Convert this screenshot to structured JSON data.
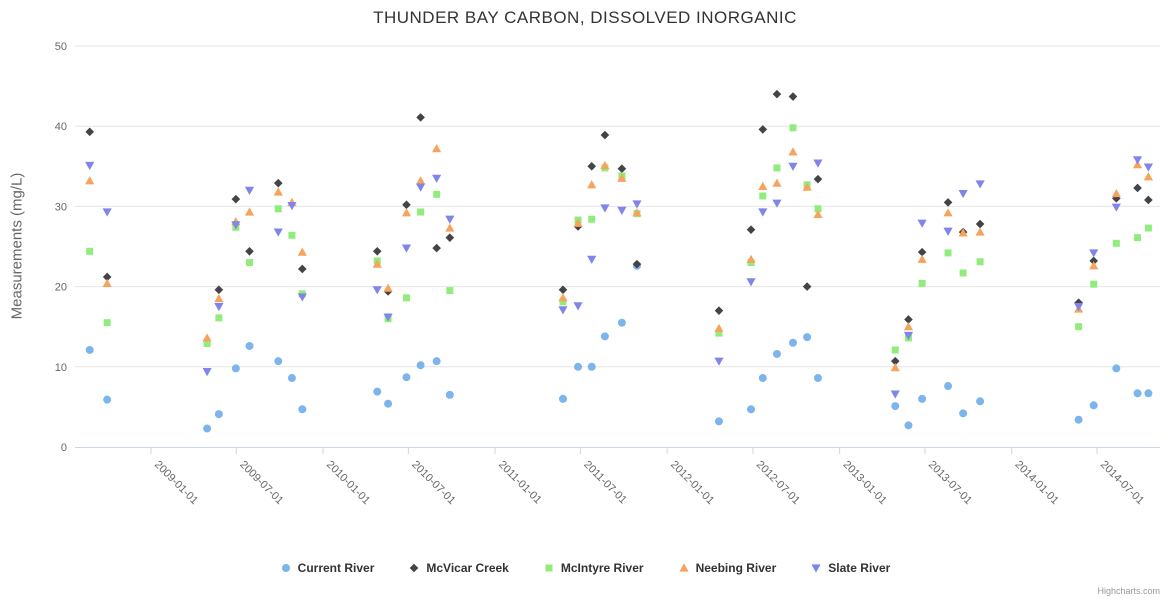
{
  "chart": {
    "title": "THUNDER BAY CARBON, DISSOLVED INORGANIC",
    "credits": "Highcharts.com"
  },
  "chart_data": {
    "type": "scatter",
    "title": "THUNDER BAY CARBON, DISSOLVED INORGANIC",
    "xlabel": "",
    "ylabel": "Measurements (mg/L)",
    "ylim": [
      0,
      50
    ],
    "y_ticks": [
      0,
      10,
      20,
      30,
      40,
      50
    ],
    "x_tick_labels": [
      "2009-01-01",
      "2009-07-01",
      "2010-01-01",
      "2010-07-01",
      "2011-01-01",
      "2011-07-01",
      "2012-01-01",
      "2012-07-01",
      "2013-01-01",
      "2013-07-01",
      "2014-01-01",
      "2014-07-01"
    ],
    "grid": true,
    "legend_position": "bottom",
    "series": [
      {
        "name": "Current River",
        "color": "#7cb5ec",
        "marker": "circle",
        "points": [
          [
            "2008-08-24",
            12.1
          ],
          [
            "2008-09-30",
            5.9
          ],
          [
            "2009-04-30",
            2.3
          ],
          [
            "2009-05-25",
            4.1
          ],
          [
            "2009-06-30",
            9.8
          ],
          [
            "2009-07-29",
            12.6
          ],
          [
            "2009-09-28",
            10.7
          ],
          [
            "2009-10-27",
            8.6
          ],
          [
            "2009-11-18",
            4.7
          ],
          [
            "2010-04-26",
            6.9
          ],
          [
            "2010-05-19",
            5.4
          ],
          [
            "2010-06-27",
            8.7
          ],
          [
            "2010-07-27",
            10.2
          ],
          [
            "2010-08-30",
            10.7
          ],
          [
            "2010-09-27",
            6.5
          ],
          [
            "2011-05-25",
            6.0
          ],
          [
            "2011-06-26",
            10.0
          ],
          [
            "2011-07-25",
            10.0
          ],
          [
            "2011-08-22",
            13.8
          ],
          [
            "2011-09-27",
            15.5
          ],
          [
            "2011-10-29",
            22.6
          ],
          [
            "2012-04-20",
            3.2
          ],
          [
            "2012-06-27",
            4.7
          ],
          [
            "2012-07-22",
            8.6
          ],
          [
            "2012-08-21",
            11.6
          ],
          [
            "2012-09-24",
            13.0
          ],
          [
            "2012-10-24",
            13.7
          ],
          [
            "2012-11-16",
            8.6
          ],
          [
            "2013-04-29",
            5.1
          ],
          [
            "2013-05-27",
            2.7
          ],
          [
            "2013-06-25",
            6.0
          ],
          [
            "2013-08-19",
            7.6
          ],
          [
            "2013-09-20",
            4.2
          ],
          [
            "2013-10-26",
            5.7
          ],
          [
            "2014-05-23",
            3.4
          ],
          [
            "2014-06-24",
            5.2
          ],
          [
            "2014-08-11",
            9.8
          ],
          [
            "2014-09-25",
            6.7
          ],
          [
            "2014-10-18",
            6.7
          ]
        ]
      },
      {
        "name": "McVicar Creek",
        "color": "#434348",
        "marker": "diamond",
        "points": [
          [
            "2008-08-24",
            39.3
          ],
          [
            "2008-09-30",
            21.2
          ],
          [
            "2009-05-25",
            19.6
          ],
          [
            "2009-06-30",
            30.9
          ],
          [
            "2009-07-29",
            24.4
          ],
          [
            "2009-09-28",
            32.9
          ],
          [
            "2009-11-18",
            22.2
          ],
          [
            "2010-04-26",
            24.4
          ],
          [
            "2010-05-19",
            19.4
          ],
          [
            "2010-06-27",
            30.2
          ],
          [
            "2010-07-27",
            41.1
          ],
          [
            "2010-08-30",
            24.8
          ],
          [
            "2010-09-27",
            26.1
          ],
          [
            "2011-05-25",
            19.6
          ],
          [
            "2011-06-26",
            27.5
          ],
          [
            "2011-07-25",
            35.0
          ],
          [
            "2011-08-22",
            38.9
          ],
          [
            "2011-09-27",
            34.7
          ],
          [
            "2011-10-29",
            22.8
          ],
          [
            "2012-04-20",
            17.0
          ],
          [
            "2012-06-27",
            27.1
          ],
          [
            "2012-07-22",
            39.6
          ],
          [
            "2012-08-21",
            44.0
          ],
          [
            "2012-09-24",
            43.7
          ],
          [
            "2012-10-24",
            20.0
          ],
          [
            "2012-11-16",
            33.4
          ],
          [
            "2013-04-29",
            10.7
          ],
          [
            "2013-05-27",
            15.9
          ],
          [
            "2013-06-25",
            24.3
          ],
          [
            "2013-08-19",
            30.5
          ],
          [
            "2013-09-20",
            26.8
          ],
          [
            "2013-10-26",
            27.8
          ],
          [
            "2014-05-23",
            18.0
          ],
          [
            "2014-06-24",
            23.2
          ],
          [
            "2014-08-11",
            31.0
          ],
          [
            "2014-09-25",
            32.3
          ],
          [
            "2014-10-18",
            30.8
          ]
        ]
      },
      {
        "name": "McIntyre River",
        "color": "#90ed7d",
        "marker": "square",
        "points": [
          [
            "2008-08-24",
            24.4
          ],
          [
            "2008-09-30",
            15.5
          ],
          [
            "2009-04-30",
            12.9
          ],
          [
            "2009-05-25",
            16.1
          ],
          [
            "2009-06-30",
            27.4
          ],
          [
            "2009-07-29",
            23.0
          ],
          [
            "2009-09-28",
            29.7
          ],
          [
            "2009-10-27",
            26.4
          ],
          [
            "2009-11-18",
            19.1
          ],
          [
            "2010-04-26",
            23.2
          ],
          [
            "2010-05-19",
            16.0
          ],
          [
            "2010-06-27",
            18.6
          ],
          [
            "2010-07-27",
            29.3
          ],
          [
            "2010-08-30",
            31.5
          ],
          [
            "2010-09-27",
            19.5
          ],
          [
            "2011-05-25",
            18.1
          ],
          [
            "2011-06-26",
            28.3
          ],
          [
            "2011-07-25",
            28.4
          ],
          [
            "2011-08-22",
            34.8
          ],
          [
            "2011-09-27",
            33.8
          ],
          [
            "2011-10-29",
            29.1
          ],
          [
            "2012-04-20",
            14.2
          ],
          [
            "2012-06-27",
            23.0
          ],
          [
            "2012-07-22",
            31.3
          ],
          [
            "2012-08-21",
            34.8
          ],
          [
            "2012-09-24",
            39.8
          ],
          [
            "2012-10-24",
            32.7
          ],
          [
            "2012-11-16",
            29.7
          ],
          [
            "2013-04-29",
            12.1
          ],
          [
            "2013-05-27",
            13.6
          ],
          [
            "2013-06-25",
            20.4
          ],
          [
            "2013-08-19",
            24.2
          ],
          [
            "2013-09-20",
            21.7
          ],
          [
            "2013-10-26",
            23.1
          ],
          [
            "2014-05-23",
            15.0
          ],
          [
            "2014-06-24",
            20.3
          ],
          [
            "2014-08-11",
            25.4
          ],
          [
            "2014-09-25",
            26.1
          ],
          [
            "2014-10-18",
            27.3
          ]
        ]
      },
      {
        "name": "Neebing River",
        "color": "#f7a35c",
        "marker": "triangle",
        "points": [
          [
            "2008-08-24",
            33.2
          ],
          [
            "2008-09-30",
            20.4
          ],
          [
            "2009-04-30",
            13.6
          ],
          [
            "2009-05-25",
            18.5
          ],
          [
            "2009-06-30",
            28.1
          ],
          [
            "2009-07-29",
            29.3
          ],
          [
            "2009-09-28",
            31.8
          ],
          [
            "2009-10-27",
            30.5
          ],
          [
            "2009-11-18",
            24.3
          ],
          [
            "2010-04-26",
            22.8
          ],
          [
            "2010-05-19",
            19.8
          ],
          [
            "2010-06-27",
            29.2
          ],
          [
            "2010-07-27",
            33.2
          ],
          [
            "2010-08-30",
            37.2
          ],
          [
            "2010-09-27",
            27.3
          ],
          [
            "2011-05-25",
            18.6
          ],
          [
            "2011-06-26",
            27.9
          ],
          [
            "2011-07-25",
            32.7
          ],
          [
            "2011-08-22",
            35.1
          ],
          [
            "2011-09-27",
            33.5
          ],
          [
            "2011-10-29",
            29.2
          ],
          [
            "2012-04-20",
            14.8
          ],
          [
            "2012-06-27",
            23.4
          ],
          [
            "2012-07-22",
            32.5
          ],
          [
            "2012-08-21",
            32.9
          ],
          [
            "2012-09-24",
            36.8
          ],
          [
            "2012-10-24",
            32.4
          ],
          [
            "2012-11-16",
            29.0
          ],
          [
            "2013-04-29",
            9.9
          ],
          [
            "2013-05-27",
            15.0
          ],
          [
            "2013-06-25",
            23.4
          ],
          [
            "2013-08-19",
            29.2
          ],
          [
            "2013-09-20",
            26.7
          ],
          [
            "2013-10-26",
            26.8
          ],
          [
            "2014-05-23",
            17.2
          ],
          [
            "2014-06-24",
            22.6
          ],
          [
            "2014-08-11",
            31.6
          ],
          [
            "2014-09-25",
            35.2
          ],
          [
            "2014-10-18",
            33.7
          ]
        ]
      },
      {
        "name": "Slate River",
        "color": "#8085e9",
        "marker": "triangle-down",
        "points": [
          [
            "2008-08-24",
            35.1
          ],
          [
            "2008-09-30",
            29.3
          ],
          [
            "2009-04-30",
            9.4
          ],
          [
            "2009-05-25",
            17.5
          ],
          [
            "2009-06-30",
            27.7
          ],
          [
            "2009-07-29",
            32.0
          ],
          [
            "2009-09-28",
            26.8
          ],
          [
            "2009-10-27",
            30.1
          ],
          [
            "2009-11-18",
            18.7
          ],
          [
            "2010-04-26",
            19.6
          ],
          [
            "2010-05-19",
            16.2
          ],
          [
            "2010-06-27",
            24.8
          ],
          [
            "2010-07-27",
            32.4
          ],
          [
            "2010-08-30",
            33.5
          ],
          [
            "2010-09-27",
            28.4
          ],
          [
            "2011-05-25",
            17.1
          ],
          [
            "2011-06-26",
            17.6
          ],
          [
            "2011-07-25",
            23.4
          ],
          [
            "2011-08-22",
            29.8
          ],
          [
            "2011-09-27",
            29.5
          ],
          [
            "2011-10-29",
            30.3
          ],
          [
            "2012-04-20",
            10.7
          ],
          [
            "2012-06-27",
            20.6
          ],
          [
            "2012-07-22",
            29.3
          ],
          [
            "2012-08-21",
            30.4
          ],
          [
            "2012-09-24",
            35.0
          ],
          [
            "2012-11-16",
            35.4
          ],
          [
            "2013-04-29",
            6.6
          ],
          [
            "2013-05-27",
            13.9
          ],
          [
            "2013-06-25",
            27.9
          ],
          [
            "2013-08-19",
            26.9
          ],
          [
            "2013-09-20",
            31.6
          ],
          [
            "2013-10-26",
            32.8
          ],
          [
            "2014-05-23",
            17.5
          ],
          [
            "2014-06-24",
            24.2
          ],
          [
            "2014-08-11",
            29.9
          ],
          [
            "2014-09-25",
            35.8
          ],
          [
            "2014-10-18",
            34.9
          ]
        ]
      }
    ]
  }
}
